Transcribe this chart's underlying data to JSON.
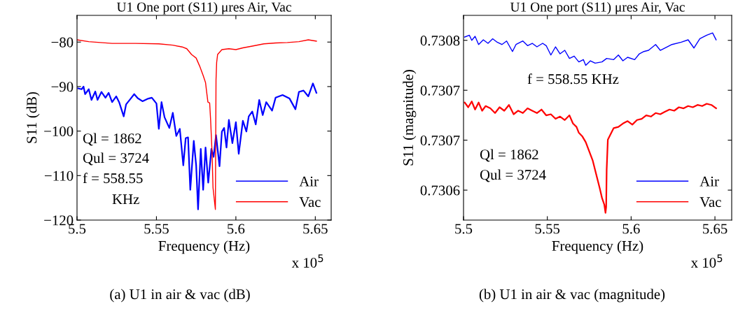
{
  "chart_data": [
    {
      "type": "line",
      "title": "U1 One port (S11) μres Air, Vac",
      "xlabel": "Frequency (Hz)",
      "ylabel": "S11 (dB)",
      "xlim": [
        5.5,
        5.66
      ],
      "xticks": [
        5.5,
        5.55,
        5.6,
        5.65
      ],
      "ylim": [
        -120,
        -74
      ],
      "yticks": [
        {
          "value": -120,
          "label": "−120"
        },
        {
          "value": -110,
          "label": "−110"
        },
        {
          "value": -100,
          "label": "−100"
        },
        {
          "value": -90,
          "label": "−90"
        },
        {
          "value": -80,
          "label": "−80"
        }
      ],
      "grid": false,
      "legend": "bottom right",
      "annotations": [
        "Ql = 1862",
        "Qul = 3724",
        "f = 558.55",
        "KHz",
        "x 10$^{5}$",
        "(a) U1 in air & vac (dB)"
      ],
      "series": [
        {
          "name": "Air",
          "color": "#0000ff",
          "x": [
            5.5007,
            5.5029,
            5.5041,
            5.5051,
            5.5074,
            5.5091,
            5.5115,
            5.5129,
            5.5154,
            5.5179,
            5.5199,
            5.5221,
            5.5247,
            5.5265,
            5.5294,
            5.5309,
            5.5338,
            5.536,
            5.5382,
            5.5412,
            5.5449,
            5.5471,
            5.55,
            5.5515,
            5.5532,
            5.5551,
            5.5581,
            5.5603,
            5.5625,
            5.5647,
            5.5669,
            5.5684,
            5.5699,
            5.5713,
            5.5735,
            5.575,
            5.5762,
            5.5779,
            5.5794,
            5.5809,
            5.5826,
            5.5846,
            5.586,
            5.5875,
            5.5897,
            5.5912,
            5.5926,
            5.5941,
            5.5956,
            5.5978,
            5.6,
            5.6018,
            5.6044,
            5.6066,
            5.6081,
            5.6103,
            5.6125,
            5.6147,
            5.6169,
            5.6191,
            5.6228,
            5.625,
            5.6294,
            5.6338,
            5.6375,
            5.6397,
            5.6426,
            5.6456,
            5.6485,
            5.6507
          ],
          "values": [
            -90.4,
            -90.6,
            -90.0,
            -91.7,
            -90.6,
            -93.0,
            -91.1,
            -93.0,
            -91.2,
            -92.5,
            -91.4,
            -93.5,
            -92.2,
            -93.5,
            -96.7,
            -94.0,
            -92.7,
            -91.7,
            -92.6,
            -93.3,
            -92.7,
            -92.5,
            -93.8,
            -99.5,
            -93.5,
            -96.9,
            -99.3,
            -95.9,
            -101.1,
            -99.5,
            -107.7,
            -101.6,
            -101.4,
            -113.2,
            -102.2,
            -107.7,
            -117.6,
            -104.0,
            -113.2,
            -103.7,
            -111.6,
            -104.0,
            -105.8,
            -100.9,
            -107.9,
            -100.1,
            -99.3,
            -103.7,
            -97.5,
            -102.7,
            -98.0,
            -105.1,
            -97.7,
            -100.1,
            -96.7,
            -95.6,
            -98.5,
            -93.0,
            -96.4,
            -93.5,
            -95.4,
            -92.5,
            -91.9,
            -92.7,
            -95.1,
            -91.2,
            -90.9,
            -92.2,
            -89.3,
            -91.4
          ]
        },
        {
          "name": "Vac",
          "color": "#ff0000",
          "x": [
            5.5,
            5.5074,
            5.5221,
            5.5368,
            5.5515,
            5.5603,
            5.5662,
            5.5691,
            5.5721,
            5.575,
            5.5772,
            5.5794,
            5.5809,
            5.5816,
            5.5824,
            5.5835,
            5.5841,
            5.585,
            5.5856,
            5.5871,
            5.5875,
            5.5879,
            5.5885,
            5.5912,
            5.5956,
            5.6,
            5.6044,
            5.6103,
            5.6176,
            5.625,
            5.6324,
            5.6397,
            5.6456,
            5.6507
          ],
          "values": [
            -79.5,
            -79.9,
            -80.3,
            -80.3,
            -80.4,
            -80.7,
            -81.1,
            -81.5,
            -82.8,
            -83.6,
            -85.4,
            -87.5,
            -89.1,
            -91.2,
            -93.5,
            -93.7,
            -97.5,
            -104.8,
            -112.7,
            -117.6,
            -88.5,
            -84.6,
            -82.8,
            -81.7,
            -81.5,
            -81.7,
            -81.3,
            -80.9,
            -80.4,
            -80.2,
            -80.1,
            -79.9,
            -79.5,
            -79.8
          ]
        }
      ]
    },
    {
      "type": "line",
      "title": "U1 One port (S11) μres Air, Vac",
      "xlabel": "Frequency (Hz)",
      "ylabel": "S11 (magnitude)",
      "xlim": [
        5.5,
        5.66
      ],
      "xticks": [
        5.5,
        5.55,
        5.6,
        5.65
      ],
      "ylim": [
        0.73062,
        0.730825
      ],
      "yticks": [
        {
          "value": 0.73065,
          "label": "0.7306"
        },
        {
          "value": 0.7307,
          "label": "0.7307"
        },
        {
          "value": 0.73075,
          "label": "0.7307"
        },
        {
          "value": 0.7308,
          "label": "0.7308"
        }
      ],
      "grid": false,
      "legend": "bottom right",
      "annotations": [
        "f = 558.55 KHz",
        "Ql = 1862",
        "Qul = 3724",
        "x 10$^{5}$",
        "(b) U1 in air & vac (magnitude)"
      ],
      "series": [
        {
          "name": "Air",
          "color": "#0000ff",
          "x": [
            5.5007,
            5.5035,
            5.5049,
            5.5069,
            5.509,
            5.5118,
            5.5146,
            5.5174,
            5.5201,
            5.5229,
            5.5257,
            5.5292,
            5.5313,
            5.5354,
            5.5382,
            5.541,
            5.5438,
            5.5472,
            5.5493,
            5.5521,
            5.5549,
            5.5576,
            5.5604,
            5.5632,
            5.566,
            5.5688,
            5.5715,
            5.5729,
            5.5757,
            5.5785,
            5.5826,
            5.5854,
            5.5896,
            5.5924,
            5.5951,
            5.5979,
            5.6021,
            5.6049,
            5.6076,
            5.6104,
            5.6146,
            5.6174,
            5.6215,
            5.6243,
            5.6299,
            5.634,
            5.6375,
            5.641,
            5.6451,
            5.6486,
            5.6507
          ],
          "values": [
            0.7308033,
            0.7308051,
            0.7308,
            0.730804,
            0.7307958,
            0.7308005,
            0.730797,
            0.7308016,
            0.7307981,
            0.7307958,
            0.7307993,
            0.7307888,
            0.7307958,
            0.7307993,
            0.7307947,
            0.730797,
            0.7307935,
            0.730797,
            0.7307947,
            0.7307853,
            0.7307935,
            0.7307865,
            0.73079,
            0.7307819,
            0.7307842,
            0.7307784,
            0.7307807,
            0.7307749,
            0.7307795,
            0.7307772,
            0.7307784,
            0.7307819,
            0.7307807,
            0.7307853,
            0.7307795,
            0.730783,
            0.7307807,
            0.7307865,
            0.7307888,
            0.73079,
            0.7307958,
            0.73079,
            0.7307935,
            0.7307958,
            0.7307981,
            0.7308005,
            0.7307923,
            0.7308016,
            0.7308051,
            0.7308074,
            0.7308005
          ]
        },
        {
          "name": "Vac",
          "color": "#ff0000",
          "x": [
            5.5007,
            5.5028,
            5.5049,
            5.5069,
            5.509,
            5.5111,
            5.5132,
            5.516,
            5.5188,
            5.5215,
            5.5243,
            5.5271,
            5.5299,
            5.5326,
            5.5354,
            5.5382,
            5.541,
            5.5438,
            5.5465,
            5.5493,
            5.5521,
            5.5549,
            5.5576,
            5.5604,
            5.5632,
            5.5653,
            5.5674,
            5.5688,
            5.5708,
            5.5729,
            5.575,
            5.5771,
            5.5785,
            5.5799,
            5.5813,
            5.5826,
            5.584,
            5.5847,
            5.5851,
            5.5854,
            5.5861,
            5.5875,
            5.5896,
            5.5924,
            5.5951,
            5.5979,
            5.6007,
            5.6035,
            5.6063,
            5.609,
            5.6118,
            5.6146,
            5.6174,
            5.6201,
            5.6229,
            5.6257,
            5.6285,
            5.6313,
            5.634,
            5.6368,
            5.6396,
            5.6424,
            5.6451,
            5.6479,
            5.6507
          ],
          "values": [
            0.7307377,
            0.730733,
            0.7307388,
            0.7307307,
            0.7307377,
            0.7307295,
            0.7307342,
            0.7307319,
            0.7307272,
            0.730733,
            0.7307295,
            0.7307353,
            0.730726,
            0.7307295,
            0.7307272,
            0.7307319,
            0.7307295,
            0.7307272,
            0.7307307,
            0.7307249,
            0.730726,
            0.7307214,
            0.7307237,
            0.7307202,
            0.7307249,
            0.7307167,
            0.7307133,
            0.7307074,
            0.730704,
            0.7306981,
            0.7306888,
            0.7306795,
            0.7306702,
            0.7306609,
            0.7306516,
            0.7306423,
            0.7306354,
            0.7306272,
            0.730633,
            0.7306702,
            0.7307005,
            0.7307051,
            0.7307121,
            0.7307133,
            0.7307167,
            0.7307191,
            0.7307156,
            0.7307202,
            0.7307214,
            0.7307249,
            0.7307237,
            0.7307272,
            0.730726,
            0.7307284,
            0.7307307,
            0.7307295,
            0.730733,
            0.7307319,
            0.7307342,
            0.730733,
            0.7307353,
            0.7307342,
            0.7307365,
            0.7307353,
            0.7307319
          ]
        }
      ]
    }
  ]
}
